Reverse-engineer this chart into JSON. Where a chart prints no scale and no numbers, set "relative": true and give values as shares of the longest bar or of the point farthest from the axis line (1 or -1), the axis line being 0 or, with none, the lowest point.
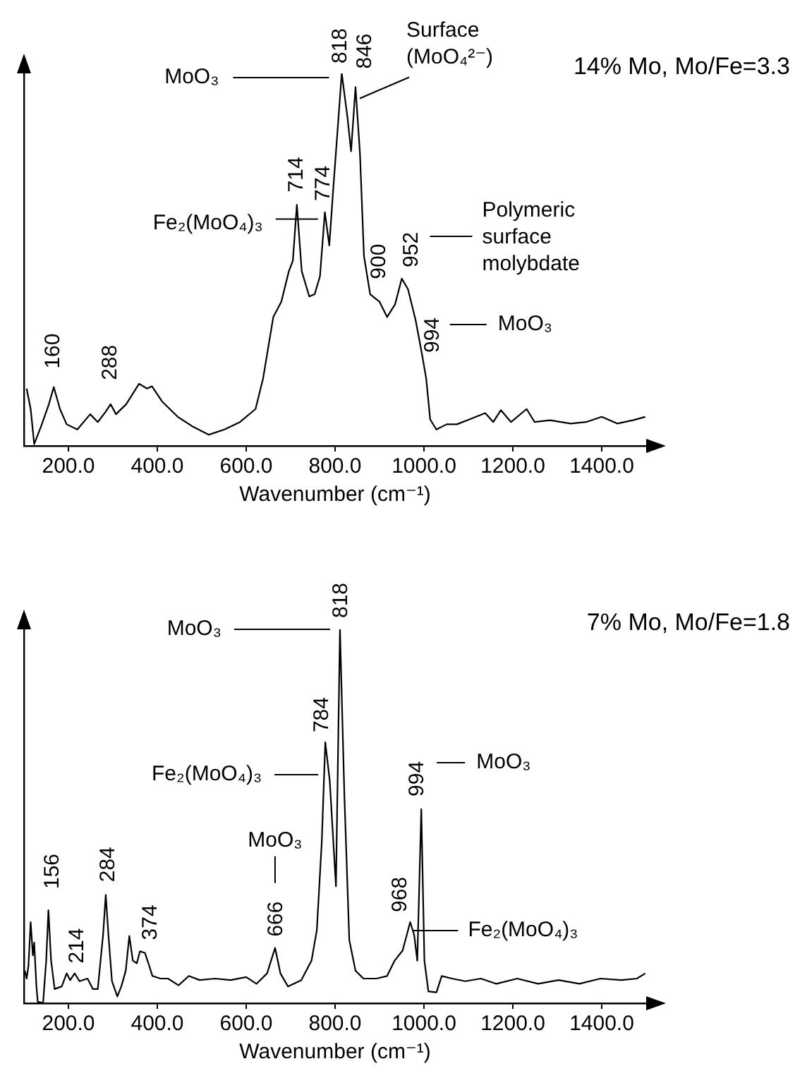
{
  "chart_data": [
    {
      "type": "line",
      "title": "14% Mo, Mo/Fe=3.3",
      "xlabel": "Wavenumber (cm⁻¹)",
      "relative": true,
      "color": "#000000",
      "xlim": [
        100,
        1500
      ],
      "xticks": [
        {
          "value": 200,
          "label": "200.0"
        },
        {
          "value": 400,
          "label": "400.0"
        },
        {
          "value": 600,
          "label": "600.0"
        },
        {
          "value": 800,
          "label": "800.0"
        },
        {
          "value": 1000,
          "label": "1000.0"
        },
        {
          "value": 1200,
          "label": "1200.0"
        },
        {
          "value": 1400,
          "label": "1400.0"
        }
      ],
      "x": [
        106,
        115,
        123,
        138,
        156,
        167,
        181,
        196,
        220,
        249,
        266,
        284,
        295,
        307,
        330,
        359,
        377,
        388,
        411,
        446,
        481,
        516,
        551,
        586,
        621,
        638,
        661,
        679,
        696,
        705,
        714,
        725,
        742,
        754,
        766,
        777,
        787,
        795,
        815,
        828,
        836,
        846,
        856,
        865,
        879,
        900,
        917,
        935,
        950,
        964,
        981,
        995,
        1005,
        1014,
        1028,
        1051,
        1074,
        1098,
        1138,
        1156,
        1173,
        1196,
        1231,
        1249,
        1284,
        1330,
        1365,
        1400,
        1435,
        1470,
        1498
      ],
      "values": [
        0.154,
        0.099,
        0.005,
        0.051,
        0.112,
        0.158,
        0.099,
        0.058,
        0.044,
        0.085,
        0.064,
        0.092,
        0.112,
        0.085,
        0.112,
        0.167,
        0.154,
        0.16,
        0.119,
        0.078,
        0.051,
        0.03,
        0.044,
        0.064,
        0.099,
        0.181,
        0.346,
        0.387,
        0.469,
        0.497,
        0.647,
        0.469,
        0.401,
        0.407,
        0.455,
        0.627,
        0.538,
        0.675,
        1.0,
        0.881,
        0.791,
        0.963,
        0.785,
        0.51,
        0.407,
        0.387,
        0.346,
        0.38,
        0.449,
        0.421,
        0.339,
        0.25,
        0.181,
        0.071,
        0.044,
        0.058,
        0.058,
        0.069,
        0.088,
        0.064,
        0.096,
        0.064,
        0.099,
        0.064,
        0.069,
        0.06,
        0.064,
        0.078,
        0.06,
        0.069,
        0.078
      ],
      "annotations": [
        {
          "text": "160",
          "x": 167,
          "y": 0.158
        },
        {
          "text": "288",
          "x": 295,
          "y": 0.112
        },
        {
          "text": "714",
          "x": 714,
          "y": 0.647
        },
        {
          "text": "774",
          "x": 777,
          "y": 0.627
        },
        {
          "text": "818",
          "x": 815,
          "y": 1.0
        },
        {
          "text": "846",
          "x": 846,
          "y": 0.963
        },
        {
          "text": "900",
          "x": 900,
          "y": 0.387
        },
        {
          "text": "952",
          "x": 950,
          "y": 0.449
        },
        {
          "text": "994",
          "x": 995,
          "y": 0.25
        },
        "MoO₃",
        {
          "text": "Surface (MoO₄²⁻)",
          "x": 846,
          "y": 0.963
        },
        {
          "text": "Fe₂(MoO₄)₃",
          "x": 714,
          "y": 0.647
        },
        "Polymeric surface molybdate",
        "MoO₃"
      ]
    },
    {
      "type": "line",
      "title": "7% Mo, Mo/Fe=1.8",
      "xlabel": "Wavenumber (cm⁻¹)",
      "relative": true,
      "color": "#000000",
      "xlim": [
        100,
        1500
      ],
      "xticks": [
        {
          "value": 200,
          "label": "200.0"
        },
        {
          "value": 400,
          "label": "400.0"
        },
        {
          "value": 600,
          "label": "600.0"
        },
        {
          "value": 800,
          "label": "800.0"
        },
        {
          "value": 1000,
          "label": "1000.0"
        },
        {
          "value": 1200,
          "label": "1200.0"
        },
        {
          "value": 1400,
          "label": "1400.0"
        }
      ],
      "x": [
        102,
        106,
        110,
        115,
        120,
        123,
        128,
        131,
        143,
        150,
        155,
        161,
        169,
        185,
        196,
        204,
        214,
        225,
        243,
        255,
        266,
        278,
        284,
        290,
        298,
        310,
        319,
        329,
        337,
        345,
        354,
        361,
        372,
        380,
        389,
        407,
        424,
        448,
        471,
        495,
        530,
        565,
        600,
        623,
        647,
        665,
        677,
        694,
        724,
        747,
        759,
        770,
        778,
        788,
        802,
        811,
        821,
        832,
        846,
        864,
        893,
        917,
        934,
        952,
        969,
        978,
        985,
        994,
        1001,
        1010,
        1028,
        1040,
        1063,
        1093,
        1128,
        1163,
        1210,
        1257,
        1303,
        1350,
        1397,
        1444,
        1479,
        1498
      ],
      "values": [
        0.087,
        0.066,
        0.1,
        0.217,
        0.128,
        0.162,
        0.045,
        0.004,
        0.001,
        0.114,
        0.249,
        0.114,
        0.038,
        0.045,
        0.08,
        0.062,
        0.08,
        0.059,
        0.066,
        0.038,
        0.038,
        0.183,
        0.29,
        0.183,
        0.059,
        0.018,
        0.045,
        0.087,
        0.18,
        0.114,
        0.107,
        0.139,
        0.135,
        0.107,
        0.073,
        0.066,
        0.066,
        0.048,
        0.073,
        0.062,
        0.066,
        0.062,
        0.07,
        0.052,
        0.08,
        0.148,
        0.08,
        0.045,
        0.062,
        0.114,
        0.196,
        0.43,
        0.698,
        0.595,
        0.313,
        1.0,
        0.554,
        0.169,
        0.087,
        0.066,
        0.066,
        0.073,
        0.114,
        0.141,
        0.217,
        0.183,
        0.114,
        0.519,
        0.114,
        0.032,
        0.029,
        0.073,
        0.066,
        0.059,
        0.066,
        0.052,
        0.066,
        0.052,
        0.062,
        0.052,
        0.066,
        0.062,
        0.066,
        0.08
      ],
      "annotations": [
        {
          "text": "156",
          "x": 155,
          "y": 0.249
        },
        {
          "text": "214",
          "x": 214,
          "y": 0.08
        },
        {
          "text": "284",
          "x": 284,
          "y": 0.29
        },
        {
          "text": "374",
          "x": 372,
          "y": 0.135
        },
        {
          "text": "666",
          "x": 665,
          "y": 0.148
        },
        {
          "text": "784",
          "x": 778,
          "y": 0.698
        },
        {
          "text": "818",
          "x": 811,
          "y": 1.0
        },
        {
          "text": "968",
          "x": 969,
          "y": 0.217
        },
        {
          "text": "994",
          "x": 994,
          "y": 0.519
        },
        "MoO₃",
        "Fe₂(MoO₄)₃",
        "MoO₃",
        "MoO₃",
        {
          "text": "Fe₂(MoO₄)₃",
          "x": 969,
          "y": 0.217
        }
      ]
    }
  ]
}
